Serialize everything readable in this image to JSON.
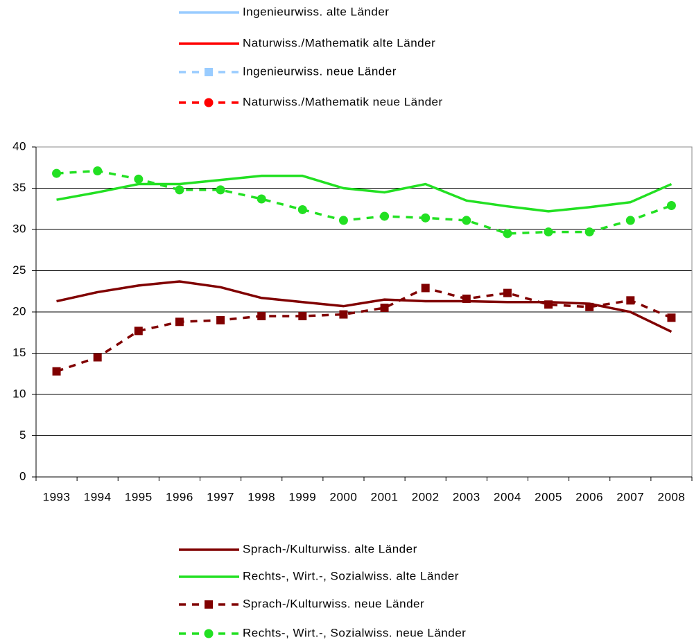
{
  "chart_data": {
    "type": "line",
    "categories": [
      "1993",
      "1994",
      "1995",
      "1996",
      "1997",
      "1998",
      "1999",
      "2000",
      "2001",
      "2002",
      "2003",
      "2004",
      "2005",
      "2006",
      "2007",
      "2008"
    ],
    "ylim": [
      0,
      40
    ],
    "yticks": [
      0,
      5,
      10,
      15,
      20,
      25,
      30,
      35,
      40
    ],
    "grid": true,
    "series": [
      {
        "name": "Ingenieurwiss. alte Länder",
        "color": "#99ccff",
        "dashed": false,
        "marker": "none",
        "values": [
          null,
          null,
          null,
          null,
          null,
          null,
          null,
          null,
          null,
          null,
          null,
          null,
          null,
          null,
          null,
          null
        ]
      },
      {
        "name": "Naturwiss./Mathematik alte Länder",
        "color": "#ff0000",
        "dashed": false,
        "marker": "none",
        "values": [
          null,
          null,
          null,
          null,
          null,
          null,
          null,
          null,
          null,
          null,
          null,
          null,
          null,
          null,
          null,
          null
        ]
      },
      {
        "name": "Ingenieurwiss. neue Länder",
        "color": "#99ccff",
        "dashed": true,
        "marker": "square",
        "values": [
          null,
          null,
          null,
          null,
          null,
          null,
          null,
          null,
          null,
          null,
          null,
          null,
          null,
          null,
          null,
          null
        ]
      },
      {
        "name": "Naturwiss./Mathematik neue Länder",
        "color": "#ff0000",
        "dashed": true,
        "marker": "circle",
        "values": [
          null,
          null,
          null,
          null,
          null,
          null,
          null,
          null,
          null,
          null,
          null,
          null,
          null,
          null,
          null,
          null
        ]
      },
      {
        "name": "Sprach-/Kulturwiss. alte Länder",
        "color": "#800000",
        "dashed": false,
        "marker": "none",
        "values": [
          21.3,
          22.4,
          23.2,
          23.7,
          23.0,
          21.7,
          21.2,
          20.7,
          21.5,
          21.3,
          21.3,
          21.2,
          21.2,
          21.0,
          20.0,
          17.6
        ]
      },
      {
        "name": "Rechts-, Wirt.-, Sozialwiss. alte Länder",
        "color": "#22e022",
        "dashed": false,
        "marker": "none",
        "values": [
          33.6,
          34.5,
          35.5,
          35.5,
          36.0,
          36.5,
          36.5,
          35.0,
          34.5,
          35.5,
          33.5,
          32.8,
          32.2,
          32.7,
          33.3,
          35.5
        ]
      },
      {
        "name": "Sprach-/Kulturwiss. neue Länder",
        "color": "#800000",
        "dashed": true,
        "marker": "square",
        "values": [
          12.8,
          14.5,
          17.7,
          18.8,
          19.0,
          19.5,
          19.5,
          19.7,
          20.5,
          22.9,
          21.6,
          22.3,
          20.9,
          20.6,
          21.4,
          19.3
        ]
      },
      {
        "name": "Rechts-, Wirt.-, Sozialwiss. neue Länder",
        "color": "#22e022",
        "dashed": true,
        "marker": "circle",
        "values": [
          36.8,
          37.1,
          36.1,
          34.8,
          34.8,
          33.7,
          32.4,
          31.1,
          31.6,
          31.4,
          31.1,
          29.5,
          29.7,
          29.7,
          31.1,
          32.9
        ]
      }
    ]
  }
}
